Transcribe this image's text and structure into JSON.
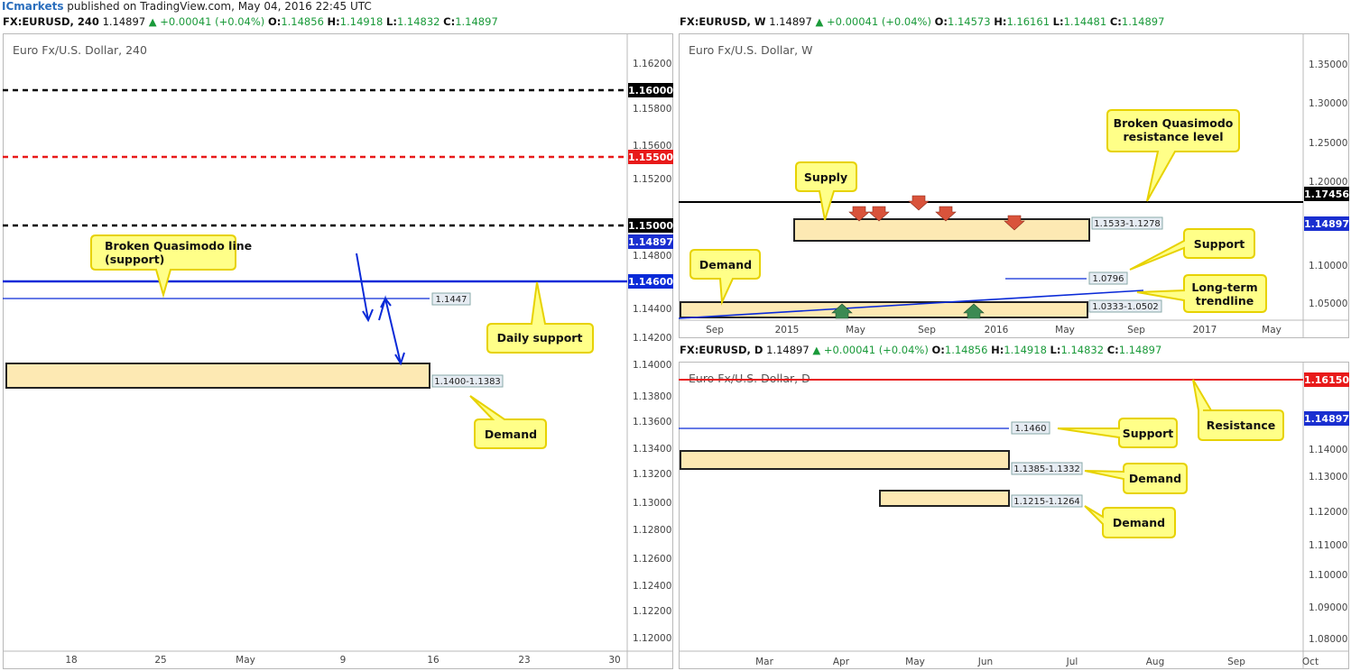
{
  "header": {
    "brand": "ICmarkets",
    "published": " published on TradingView.com, May 04, 2016 22:45 UTC"
  },
  "colors": {
    "bull": "#1a2fd0",
    "bear": "#e01818",
    "level_black": "#000000",
    "level_red": "#e81a1a",
    "level_blue": "#0a2ad8",
    "zone_fill": "#fde9b3",
    "callout_fill": "#ffff88",
    "callout_border": "#e7d200",
    "marker_red": "#d9533b",
    "marker_green": "#3b8a52"
  },
  "panels": [
    {
      "id": "h4",
      "ohlc": {
        "symbol": "FX:EURUSD, 240",
        "last": "1.14897",
        "change": "▲ +0.00041 (+0.04%)",
        "o": "1.14856",
        "h": "1.14918",
        "l": "1.14832",
        "c": "1.14897"
      },
      "chart_title": "Euro Fx/U.S. Dollar, 240"
    },
    {
      "id": "weekly",
      "ohlc": {
        "symbol": "FX:EURUSD, W",
        "last": "1.14897",
        "change": "▲ +0.00041 (+0.04%)",
        "o": "1.14573",
        "h": "1.16161",
        "l": "1.14481",
        "c": "1.14897"
      },
      "chart_title": "Euro Fx/U.S. Dollar, W"
    },
    {
      "id": "daily",
      "ohlc": {
        "symbol": "FX:EURUSD, D",
        "last": "1.14897",
        "change": "▲ +0.00041 (+0.04%)",
        "o": "1.14856",
        "h": "1.14918",
        "l": "1.14832",
        "c": "1.14897"
      },
      "chart_title": "Euro Fx/U.S. Dollar, D"
    }
  ],
  "chart_data": [
    {
      "type": "candlestick",
      "timeframe": "240",
      "y_ticks": [
        "1.16200",
        "1.15800",
        "1.15600",
        "1.15200",
        "1.14800",
        "1.14400",
        "1.14200",
        "1.14000",
        "1.13800",
        "1.13600",
        "1.13400",
        "1.13200",
        "1.13000",
        "1.12800",
        "1.12600",
        "1.12400",
        "1.12200",
        "1.12000"
      ],
      "x_ticks": [
        "18",
        "25",
        "May",
        "9",
        "16",
        "23",
        "30"
      ],
      "ylim": [
        1.119,
        1.164
      ],
      "levels": [
        {
          "price": 1.16,
          "label": "1.16000",
          "color": "black",
          "style": "dashed"
        },
        {
          "price": 1.155,
          "label": "1.15500",
          "color": "red",
          "style": "dashed"
        },
        {
          "price": 1.15,
          "label": "1.15000",
          "color": "black",
          "style": "dashed"
        },
        {
          "price": 1.146,
          "label": "1.14600",
          "color": "blue",
          "style": "solid"
        },
        {
          "price": 1.1447,
          "label": "1.1447",
          "color": "blue",
          "style": "thin"
        }
      ],
      "last_price_label": "1.14897",
      "zones": [
        {
          "label": "1.1400-1.1383",
          "top": 1.14,
          "bottom": 1.1383
        }
      ],
      "annotations": [
        "Broken Quasimodo line (support)",
        "Daily support",
        "Demand"
      ]
    },
    {
      "type": "candlestick",
      "timeframe": "W",
      "y_ticks": [
        "1.35000",
        "1.30000",
        "1.25000",
        "1.20000",
        "1.10000",
        "1.05000"
      ],
      "x_ticks": [
        "Sep",
        "2015",
        "May",
        "Sep",
        "2016",
        "May",
        "Sep",
        "2017",
        "May"
      ],
      "ylim": [
        1.025,
        1.37
      ],
      "levels": [
        {
          "price": 1.17456,
          "label": "1.17456",
          "color": "black",
          "style": "solid"
        },
        {
          "price": 1.0796,
          "label": "1.0796",
          "color": "blue",
          "style": "thin"
        }
      ],
      "last_price_label": "1.14897",
      "zones": [
        {
          "label": "1.1533-1.1278",
          "top": 1.1533,
          "bottom": 1.1278
        },
        {
          "label": "1.0333-1.0502",
          "top": 1.0502,
          "bottom": 1.0333
        }
      ],
      "annotations": [
        "Broken Quasimodo resistance level",
        "Supply",
        "Support",
        "Demand",
        "Long-term trendline"
      ]
    },
    {
      "type": "candlestick",
      "timeframe": "D",
      "y_ticks": [
        "1.14000",
        "1.13000",
        "1.12000",
        "1.11000",
        "1.10000",
        "1.09000",
        "1.08000"
      ],
      "x_ticks": [
        "Mar",
        "Apr",
        "May",
        "Jun",
        "Jul",
        "Aug",
        "Sep",
        "Oct"
      ],
      "ylim": [
        1.076,
        1.165
      ],
      "levels": [
        {
          "price": 1.1615,
          "label": "1.16150",
          "color": "red",
          "style": "solid"
        },
        {
          "price": 1.146,
          "label": "1.1460",
          "color": "blue",
          "style": "thin"
        }
      ],
      "last_price_label": "1.14897",
      "zones": [
        {
          "label": "1.1385-1.1332",
          "top": 1.1385,
          "bottom": 1.1332
        },
        {
          "label": "1.1215-1.1264",
          "top": 1.1264,
          "bottom": 1.1215
        }
      ],
      "annotations": [
        "Resistance",
        "Support",
        "Demand",
        "Demand"
      ]
    }
  ]
}
